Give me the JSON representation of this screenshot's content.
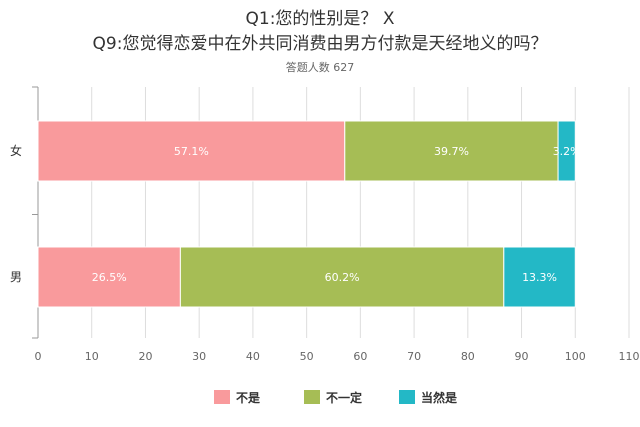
{
  "chart_data": {
    "type": "bar",
    "orientation": "horizontal",
    "stacked": true,
    "title_lines": [
      "Q1:您的性别是？ X",
      "Q9:您觉得恋爱中在外共同消费由男方付款是天经地义的吗？"
    ],
    "subtitle": "答题人数 627",
    "categories": [
      "女",
      "男"
    ],
    "series": [
      {
        "name": "不是",
        "color": "#f99a9c",
        "values": [
          57.1,
          26.5
        ],
        "labels": [
          "57.1%",
          "26.5%"
        ]
      },
      {
        "name": "不一定",
        "color": "#a6bd55",
        "values": [
          39.7,
          60.2
        ],
        "labels": [
          "39.7%",
          "60.2%"
        ]
      },
      {
        "name": "当然是",
        "color": "#23b8c6",
        "values": [
          3.2,
          13.3
        ],
        "labels": [
          "3.2%",
          "13.3%"
        ]
      }
    ],
    "xlim": [
      0,
      110
    ],
    "xticks": [
      0,
      10,
      20,
      30,
      40,
      50,
      60,
      70,
      80,
      90,
      100,
      110
    ],
    "grid": true,
    "legend_position": "bottom"
  }
}
